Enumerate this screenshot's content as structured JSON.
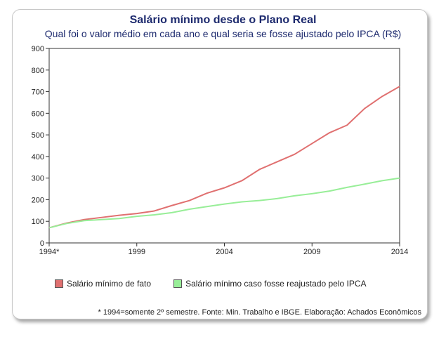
{
  "chart_data": {
    "type": "line",
    "title": "Salário mínimo desde o Plano Real",
    "subtitle": "Qual foi o valor médio em cada ano e qual seria se fosse ajustado pelo IPCA (R$)",
    "x": [
      1994,
      1995,
      1996,
      1997,
      1998,
      1999,
      2000,
      2001,
      2002,
      2003,
      2004,
      2005,
      2006,
      2007,
      2008,
      2009,
      2010,
      2011,
      2012,
      2013,
      2014
    ],
    "xlim": [
      1994,
      2014
    ],
    "x_ticks": [
      1994,
      1999,
      2004,
      2009,
      2014
    ],
    "x_tick_labels": [
      "1994*",
      "1999",
      "2004",
      "2009",
      "2014"
    ],
    "ylim": [
      0,
      900
    ],
    "y_ticks": [
      0,
      100,
      200,
      300,
      400,
      500,
      600,
      700,
      800,
      900
    ],
    "grid": false,
    "legend_position": "bottom",
    "series": [
      {
        "name": "Salário mínimo de fato",
        "color": "#e07070",
        "values": [
          70,
          92,
          108,
          118,
          128,
          136,
          148,
          173,
          196,
          230,
          255,
          288,
          340,
          375,
          410,
          460,
          510,
          545,
          622,
          678,
          724
        ]
      },
      {
        "name": "Salário mínimo caso fosse reajustado pelo IPCA",
        "color": "#98ee98",
        "values": [
          70,
          90,
          103,
          108,
          113,
          123,
          130,
          140,
          156,
          168,
          180,
          190,
          196,
          205,
          218,
          228,
          240,
          257,
          272,
          288,
          300
        ]
      }
    ]
  },
  "footnote": "* 1994=somente 2º semestre. Fonte: Min. Trabalho e IBGE. Elaboração: Achados Econômicos"
}
